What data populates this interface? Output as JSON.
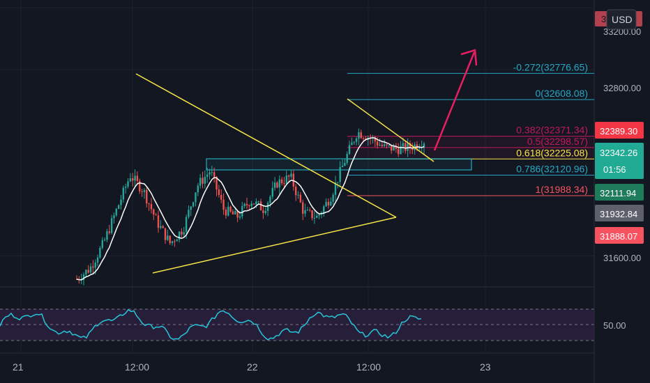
{
  "currency_button": {
    "label": "USD"
  },
  "price_axis": {
    "ticks": [
      "32800.00",
      "31600.00"
    ],
    "top_hidden_label": "33200.00",
    "top_badge_label": "33... 1"
  },
  "price_tags": [
    {
      "value": "32389.30",
      "bg": "#f23645",
      "fg": "#ffffff"
    },
    {
      "value": "32342.26",
      "sub": "01:56",
      "bg": "#22ab94",
      "fg": "#ffffff"
    },
    {
      "value": "32111.94",
      "bg": "#1e7b5b",
      "fg": "#ffffff"
    },
    {
      "value": "31932.84",
      "bg": "#5d606b",
      "fg": "#ffffff"
    },
    {
      "value": "31888.07",
      "bg": "#f7525f",
      "fg": "#ffffff"
    }
  ],
  "fib_levels": [
    {
      "label": "-0.272(32776.65)",
      "color": "#26a7c4"
    },
    {
      "label": "0(32608.08)",
      "color": "#26a7c4"
    },
    {
      "label": "0.382(32371.34)",
      "color": "#c2185b"
    },
    {
      "label": "0.5(32298.57)",
      "color": "#c2185b"
    },
    {
      "label": "0.618(32225.08)",
      "color": "#f9e547"
    },
    {
      "label": "0.786(32120.96)",
      "color": "#26a7c4"
    },
    {
      "label": "1(31988.34)",
      "color": "#f7525f"
    }
  ],
  "time_axis": {
    "labels": [
      "21",
      "12:00",
      "22",
      "12:00",
      "23"
    ]
  },
  "rsi": {
    "level_label": "50.00"
  },
  "colors": {
    "background": "#131722",
    "up": "#26a69a",
    "down": "#ef5350",
    "triangle": "#f9e547",
    "arrow": "#e91e63",
    "rsi_line": "#26c6da",
    "rsi_band": "#2a1f3d"
  },
  "chart_data": {
    "type": "candlestick",
    "symbol_currency": "USD",
    "ylim": [
      31400,
      33250
    ],
    "x_labels": [
      "21",
      "12:00",
      "22",
      "12:00",
      "23"
    ],
    "close_series_approx": [
      31450,
      31520,
      31680,
      31900,
      32120,
      32020,
      31820,
      31680,
      31780,
      32050,
      32150,
      31900,
      31850,
      31960,
      31900,
      32070,
      32110,
      31880,
      31850,
      31980,
      32200,
      32400,
      32360,
      32300,
      32290,
      32300,
      32342
    ],
    "fibonacci": [
      {
        "ratio": -0.272,
        "price": 32776.65
      },
      {
        "ratio": 0,
        "price": 32608.08
      },
      {
        "ratio": 0.382,
        "price": 32371.34
      },
      {
        "ratio": 0.5,
        "price": 32298.57
      },
      {
        "ratio": 0.618,
        "price": 32225.08
      },
      {
        "ratio": 0.786,
        "price": 32120.96
      },
      {
        "ratio": 1,
        "price": 31988.34
      }
    ],
    "rsi_level": 50.0
  }
}
